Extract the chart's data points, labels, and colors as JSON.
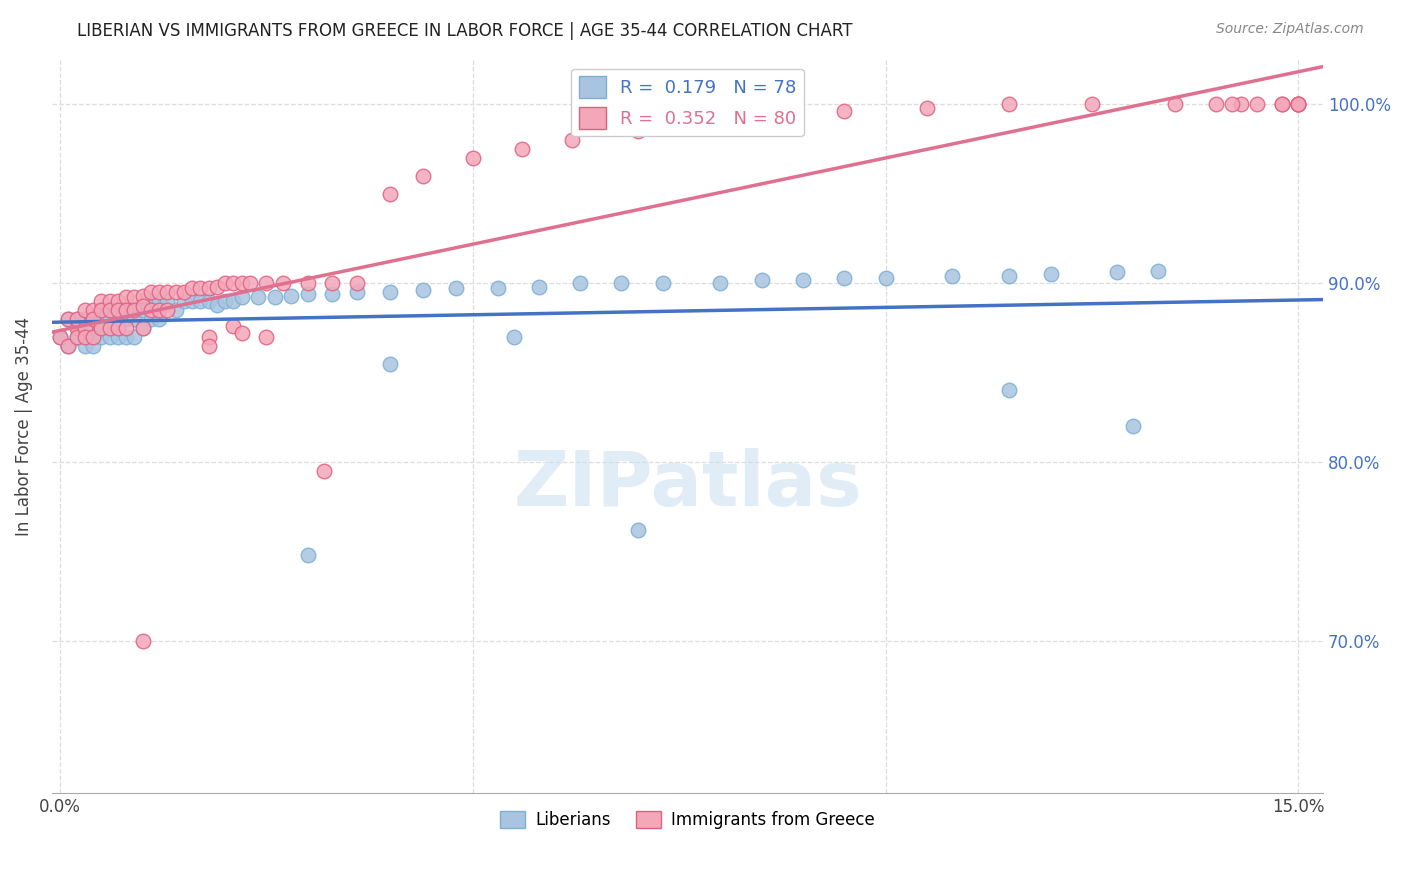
{
  "title": "LIBERIAN VS IMMIGRANTS FROM GREECE IN LABOR FORCE | AGE 35-44 CORRELATION CHART",
  "source": "Source: ZipAtlas.com",
  "ylabel_label": "In Labor Force | Age 35-44",
  "xlim": [
    -0.001,
    0.153
  ],
  "ylim": [
    0.615,
    1.025
  ],
  "yticks": [
    0.7,
    0.8,
    0.9,
    1.0
  ],
  "ytick_labels": [
    "70.0%",
    "80.0%",
    "90.0%",
    "100.0%"
  ],
  "xticks": [
    0.0,
    0.15
  ],
  "xtick_labels": [
    "0.0%",
    "15.0%"
  ],
  "liberian_color": "#a8c4e0",
  "liberian_edge": "#7bafd4",
  "greece_color": "#f4a7b9",
  "greece_edge": "#e06080",
  "blue_line_color": "#4472c4",
  "pink_line_color": "#e07090",
  "R_liberian": 0.179,
  "N_liberian": 78,
  "R_greece": 0.352,
  "N_greece": 80,
  "liberian_x": [
    0.0,
    0.001,
    0.001,
    0.002,
    0.002,
    0.002,
    0.003,
    0.003,
    0.003,
    0.003,
    0.004,
    0.004,
    0.004,
    0.004,
    0.005,
    0.005,
    0.005,
    0.005,
    0.006,
    0.006,
    0.006,
    0.006,
    0.007,
    0.007,
    0.007,
    0.008,
    0.008,
    0.008,
    0.009,
    0.009,
    0.009,
    0.01,
    0.01,
    0.01,
    0.011,
    0.011,
    0.012,
    0.012,
    0.013,
    0.014,
    0.015,
    0.016,
    0.017,
    0.018,
    0.019,
    0.02,
    0.021,
    0.022,
    0.024,
    0.026,
    0.028,
    0.03,
    0.033,
    0.036,
    0.04,
    0.044,
    0.048,
    0.053,
    0.058,
    0.063,
    0.068,
    0.073,
    0.08,
    0.085,
    0.09,
    0.095,
    0.1,
    0.108,
    0.115,
    0.12,
    0.128,
    0.133,
    0.04,
    0.055,
    0.115,
    0.13,
    0.03,
    0.07
  ],
  "liberian_y": [
    0.87,
    0.88,
    0.865,
    0.875,
    0.87,
    0.88,
    0.88,
    0.875,
    0.87,
    0.865,
    0.88,
    0.875,
    0.87,
    0.865,
    0.885,
    0.88,
    0.875,
    0.87,
    0.885,
    0.88,
    0.875,
    0.87,
    0.885,
    0.88,
    0.87,
    0.885,
    0.88,
    0.87,
    0.885,
    0.88,
    0.87,
    0.89,
    0.885,
    0.875,
    0.89,
    0.88,
    0.89,
    0.88,
    0.89,
    0.885,
    0.89,
    0.89,
    0.89,
    0.89,
    0.888,
    0.89,
    0.89,
    0.892,
    0.892,
    0.892,
    0.893,
    0.894,
    0.894,
    0.895,
    0.895,
    0.896,
    0.897,
    0.897,
    0.898,
    0.9,
    0.9,
    0.9,
    0.9,
    0.902,
    0.902,
    0.903,
    0.903,
    0.904,
    0.904,
    0.905,
    0.906,
    0.907,
    0.855,
    0.87,
    0.84,
    0.82,
    0.748,
    0.762
  ],
  "greece_x": [
    0.0,
    0.001,
    0.001,
    0.002,
    0.002,
    0.002,
    0.003,
    0.003,
    0.003,
    0.004,
    0.004,
    0.004,
    0.005,
    0.005,
    0.005,
    0.006,
    0.006,
    0.006,
    0.007,
    0.007,
    0.007,
    0.008,
    0.008,
    0.008,
    0.009,
    0.009,
    0.01,
    0.01,
    0.01,
    0.011,
    0.011,
    0.012,
    0.012,
    0.013,
    0.013,
    0.014,
    0.015,
    0.016,
    0.017,
    0.018,
    0.019,
    0.02,
    0.021,
    0.022,
    0.023,
    0.025,
    0.027,
    0.03,
    0.033,
    0.036,
    0.04,
    0.044,
    0.05,
    0.056,
    0.062,
    0.07,
    0.078,
    0.086,
    0.095,
    0.105,
    0.115,
    0.125,
    0.135,
    0.143,
    0.148,
    0.15,
    0.15,
    0.15,
    0.15,
    0.148,
    0.145,
    0.142,
    0.14,
    0.021,
    0.025,
    0.018,
    0.018,
    0.022,
    0.032,
    0.01
  ],
  "greece_y": [
    0.87,
    0.88,
    0.865,
    0.875,
    0.87,
    0.88,
    0.885,
    0.875,
    0.87,
    0.885,
    0.88,
    0.87,
    0.89,
    0.885,
    0.875,
    0.89,
    0.885,
    0.875,
    0.89,
    0.885,
    0.875,
    0.892,
    0.885,
    0.875,
    0.892,
    0.885,
    0.893,
    0.887,
    0.875,
    0.895,
    0.885,
    0.895,
    0.885,
    0.895,
    0.885,
    0.895,
    0.895,
    0.897,
    0.897,
    0.897,
    0.898,
    0.9,
    0.9,
    0.9,
    0.9,
    0.9,
    0.9,
    0.9,
    0.9,
    0.9,
    0.95,
    0.96,
    0.97,
    0.975,
    0.98,
    0.985,
    0.99,
    0.993,
    0.996,
    0.998,
    1.0,
    1.0,
    1.0,
    1.0,
    1.0,
    1.0,
    1.0,
    1.0,
    1.0,
    1.0,
    1.0,
    1.0,
    1.0,
    0.876,
    0.87,
    0.87,
    0.865,
    0.872,
    0.795,
    0.7
  ],
  "watermark_text": "ZIPatlas",
  "watermark_fontsize": 55,
  "grid_color": "#dddddd",
  "title_fontsize": 12,
  "source_fontsize": 10,
  "ylabel_fontsize": 12,
  "tick_fontsize": 12,
  "right_tick_color": "#4472c4"
}
